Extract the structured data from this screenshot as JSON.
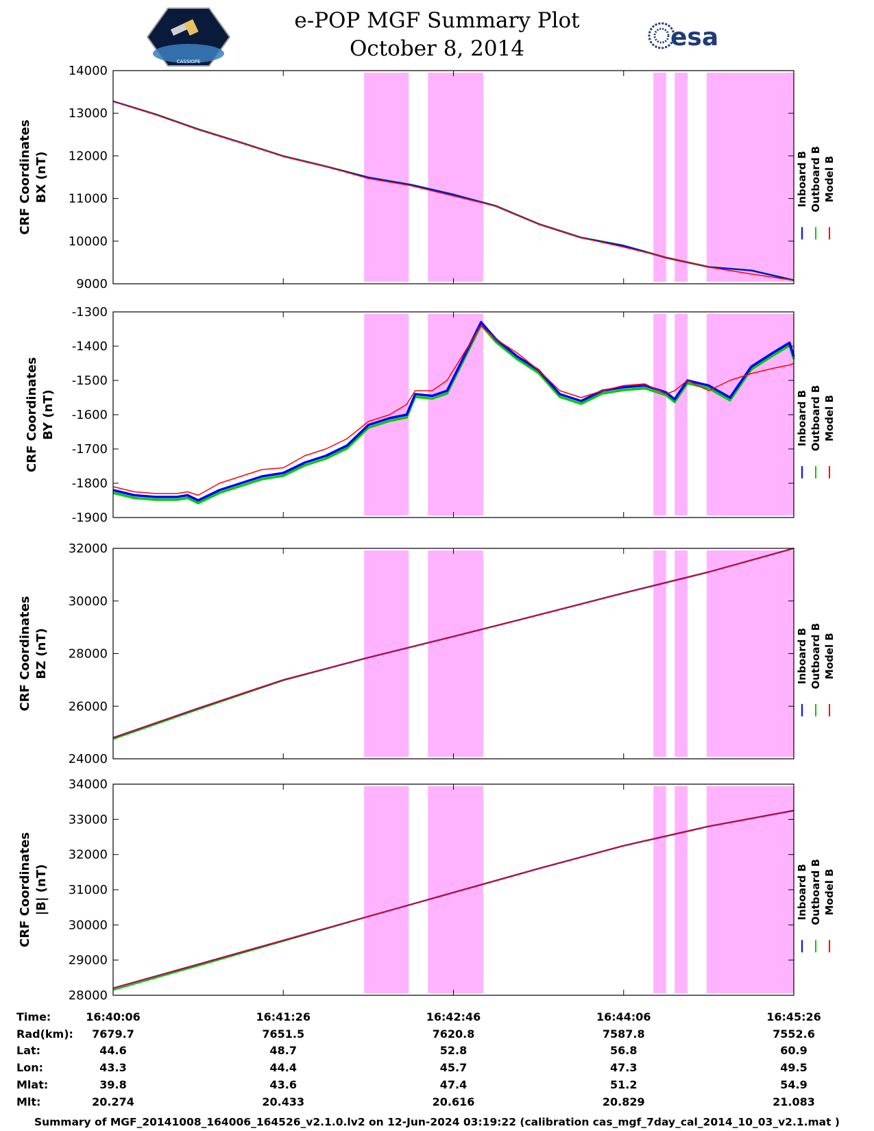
{
  "header": {
    "title_line1": "e-POP MGF Summary Plot",
    "title_line2": "October 8, 2014",
    "left_logo_text": "CASSIOPE",
    "right_logo_text": "esa"
  },
  "footer": {
    "text": "Summary of MGF_20141008_164006_164526_v2.1.0.lv2 on 12-Jun-2024 03:19:22 (calibration cas_mgf_7day_cal_2014_10_03_v2.1.mat )"
  },
  "colors": {
    "inboard": "#0000ff",
    "outboard": "#00cc00",
    "model": "#ff0000",
    "highlight": "#ffb3ff"
  },
  "chart_data": {
    "type": "line",
    "x_unit": "seconds from 16:40:06",
    "xlim": [
      0,
      320
    ],
    "x_ticks": [
      0,
      80,
      160,
      240,
      320
    ],
    "highlight_intervals": [
      [
        118,
        139
      ],
      [
        148,
        174
      ],
      [
        254,
        260
      ],
      [
        264,
        270
      ],
      [
        279,
        320
      ]
    ],
    "legend": [
      "Inboard B",
      "Outboard B",
      "Model B"
    ],
    "panels": [
      {
        "ylabel1": "CRF Coordinates",
        "ylabel2": "BX (nT)",
        "ylim": [
          9000,
          14000
        ],
        "yticks": [
          9000,
          10000,
          11000,
          12000,
          13000,
          14000
        ],
        "ytick_labels": [
          "9000",
          "10000",
          "11000",
          "12000",
          "13000",
          "14000"
        ],
        "x": [
          0,
          20,
          40,
          60,
          80,
          100,
          120,
          140,
          160,
          180,
          200,
          220,
          240,
          260,
          280,
          300,
          320
        ],
        "series": [
          {
            "name": "Inboard B",
            "values": [
              13280,
              12970,
              12620,
              12310,
              11990,
              11750,
              11490,
              11320,
              11090,
              10820,
              10400,
              10080,
              9890,
              9610,
              9390,
              9310,
              9080
            ]
          },
          {
            "name": "Outboard B",
            "values": [
              13285,
              12980,
              12630,
              12320,
              12000,
              11760,
              11500,
              11330,
              11100,
              10830,
              10410,
              10090,
              9900,
              9620,
              9400,
              9320,
              9090
            ]
          },
          {
            "name": "Model B",
            "values": [
              13280,
              12970,
              12620,
              12310,
              11990,
              11750,
              11470,
              11300,
              11060,
              10820,
              10400,
              10080,
              9860,
              9620,
              9390,
              9230,
              9080
            ]
          }
        ]
      },
      {
        "ylabel1": "CRF Coordinates",
        "ylabel2": "BY (nT)",
        "ylim": [
          -1900,
          -1300
        ],
        "yticks": [
          -1900,
          -1800,
          -1700,
          -1600,
          -1500,
          -1400,
          -1300
        ],
        "ytick_labels": [
          "-1900",
          "-1800",
          "-1700",
          "-1600",
          "-1500",
          "-1400",
          "-1300"
        ],
        "x": [
          0,
          10,
          20,
          30,
          35,
          40,
          50,
          60,
          70,
          80,
          90,
          100,
          110,
          120,
          130,
          138,
          142,
          150,
          157,
          165,
          173,
          180,
          190,
          200,
          210,
          220,
          230,
          240,
          250,
          260,
          264,
          270,
          280,
          290,
          300,
          310,
          318,
          320
        ],
        "series": [
          {
            "name": "Inboard B",
            "values": [
              -1820,
              -1835,
              -1840,
              -1840,
              -1835,
              -1850,
              -1820,
              -1800,
              -1780,
              -1770,
              -1740,
              -1720,
              -1690,
              -1630,
              -1610,
              -1600,
              -1540,
              -1545,
              -1530,
              -1430,
              -1330,
              -1380,
              -1430,
              -1470,
              -1540,
              -1560,
              -1530,
              -1520,
              -1515,
              -1535,
              -1555,
              -1500,
              -1515,
              -1550,
              -1460,
              -1420,
              -1390,
              -1430
            ]
          },
          {
            "name": "Outboard B",
            "values": [
              -1828,
              -1843,
              -1848,
              -1848,
              -1843,
              -1858,
              -1828,
              -1808,
              -1788,
              -1778,
              -1748,
              -1728,
              -1698,
              -1638,
              -1618,
              -1608,
              -1548,
              -1553,
              -1538,
              -1438,
              -1338,
              -1388,
              -1438,
              -1478,
              -1548,
              -1568,
              -1538,
              -1528,
              -1523,
              -1543,
              -1563,
              -1508,
              -1523,
              -1558,
              -1468,
              -1428,
              -1398,
              -1438
            ]
          },
          {
            "name": "Model B",
            "values": [
              -1810,
              -1825,
              -1830,
              -1830,
              -1825,
              -1835,
              -1800,
              -1780,
              -1760,
              -1755,
              -1720,
              -1700,
              -1670,
              -1620,
              -1600,
              -1570,
              -1530,
              -1530,
              -1500,
              -1420,
              -1340,
              -1380,
              -1420,
              -1470,
              -1530,
              -1550,
              -1530,
              -1515,
              -1510,
              -1540,
              -1530,
              -1500,
              -1530,
              -1500,
              -1480,
              -1465,
              -1455,
              -1450
            ]
          }
        ]
      },
      {
        "ylabel1": "CRF Coordinates",
        "ylabel2": "BZ (nT)",
        "ylim": [
          24000,
          32000
        ],
        "yticks": [
          24000,
          26000,
          28000,
          30000,
          32000
        ],
        "ytick_labels": [
          "24000",
          "26000",
          "28000",
          "30000",
          "32000"
        ],
        "x": [
          0,
          40,
          80,
          120,
          160,
          200,
          240,
          280,
          320
        ],
        "series": [
          {
            "name": "Inboard B",
            "values": [
              24800,
              25920,
              27000,
              27850,
              28650,
              29470,
              30300,
              31100,
              32000
            ]
          },
          {
            "name": "Outboard B",
            "values": [
              24750,
              25880,
              26980,
              27850,
              28650,
              29470,
              30300,
              31100,
              32000
            ]
          },
          {
            "name": "Model B",
            "values": [
              24800,
              25920,
              27000,
              27850,
              28650,
              29470,
              30300,
              31100,
              32000
            ]
          }
        ]
      },
      {
        "ylabel1": "CRF Coordinates",
        "ylabel2": "|B| (nT)",
        "ylim": [
          28000,
          34000
        ],
        "yticks": [
          28000,
          29000,
          30000,
          31000,
          32000,
          33000,
          34000
        ],
        "ytick_labels": [
          "28000",
          "29000",
          "30000",
          "31000",
          "32000",
          "33000",
          "34000"
        ],
        "x": [
          0,
          40,
          80,
          120,
          160,
          200,
          240,
          280,
          320
        ],
        "series": [
          {
            "name": "Inboard B",
            "values": [
              28200,
              28880,
              29560,
              30240,
              30920,
              31600,
              32250,
              32800,
              33250
            ]
          },
          {
            "name": "Outboard B",
            "values": [
              28150,
              28840,
              29540,
              30240,
              30920,
              31600,
              32250,
              32800,
              33250
            ]
          },
          {
            "name": "Model B",
            "values": [
              28200,
              28880,
              29560,
              30240,
              30920,
              31600,
              32250,
              32800,
              33250
            ]
          }
        ]
      }
    ]
  },
  "ephemeris": {
    "labels": [
      "Time:",
      "Rad(km):",
      "Lat:",
      "Lon:",
      "Mlat:",
      "Mlt:"
    ],
    "columns": [
      [
        "16:40:06",
        "7679.7",
        "44.6",
        "43.3",
        "39.8",
        "20.274"
      ],
      [
        "16:41:26",
        "7651.5",
        "48.7",
        "44.4",
        "43.6",
        "20.433"
      ],
      [
        "16:42:46",
        "7620.8",
        "52.8",
        "45.7",
        "47.4",
        "20.616"
      ],
      [
        "16:44:06",
        "7587.8",
        "56.8",
        "47.3",
        "51.2",
        "20.829"
      ],
      [
        "16:45:26",
        "7552.6",
        "60.9",
        "49.5",
        "54.9",
        "21.083"
      ]
    ]
  }
}
